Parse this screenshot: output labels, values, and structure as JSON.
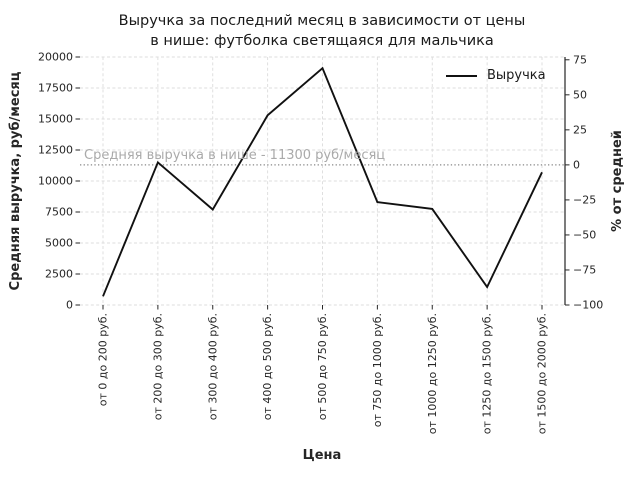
{
  "figure": {
    "title_line1": "Выручка за последний месяц в зависимости от цены",
    "title_line2": "в нише: футболка светящаяся для мальчика"
  },
  "chart_data": {
    "type": "line",
    "title": "Выручка за последний месяц в зависимости от цены в нише: футболка светящаяся для мальчика",
    "xlabel": "Цена",
    "ylabel_left": "Средняя выручка, руб/месяц",
    "ylabel_right": "% от средней",
    "categories": [
      "от 0 до 200 руб.",
      "от 200 до 300 руб.",
      "от 300 до 400 руб.",
      "от 400 до 500 руб.",
      "от 500 до 750 руб.",
      "от 750 до 1000 руб.",
      "от 1000 до 1250 руб.",
      "от 1250 до 1500 руб.",
      "от 1500 до 2000 руб."
    ],
    "series": [
      {
        "name": "Выручка",
        "values": [
          700,
          11500,
          7700,
          15300,
          19100,
          8300,
          7750,
          1450,
          10700
        ]
      }
    ],
    "ylim_left": [
      0,
      20000
    ],
    "yticks_left": [
      0,
      2500,
      5000,
      7500,
      10000,
      12500,
      15000,
      17500,
      20000
    ],
    "ylim_right": [
      -100,
      77
    ],
    "yticks_right": [
      75,
      50,
      25,
      0,
      -25,
      -50,
      -75,
      -100
    ],
    "average_line": {
      "value": 11300,
      "label": "Средняя выручка в нише - 11300 руб/месяц"
    },
    "legend": {
      "entries": [
        "Выручка"
      ],
      "position": "upper right",
      "frame": false
    },
    "grid": true,
    "grid_style": "dashed",
    "line_markers": false
  },
  "colors": {
    "line": "#111111",
    "grid": "#dcdcdc",
    "spine": "#262626",
    "tick_text": "#262626",
    "title_text": "#1a1a1a",
    "average_line": "#888888",
    "annotation_text": "#aaaaaa",
    "background": "#ffffff"
  }
}
